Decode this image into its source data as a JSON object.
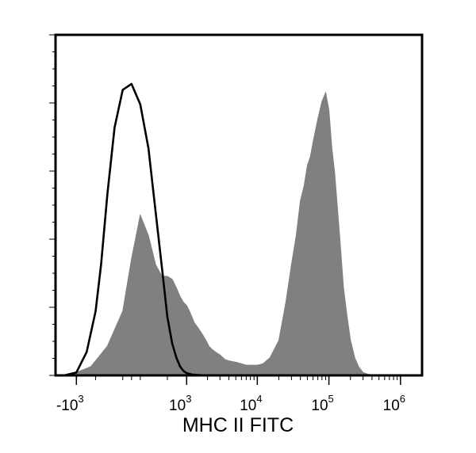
{
  "chart_data": {
    "type": "area",
    "title": "",
    "xlabel": "MHC II FITC",
    "ylabel": "",
    "x_scale": "biexponential",
    "x_ticks": [
      {
        "value": -1000,
        "base": "-10",
        "exp": "3"
      },
      {
        "value": 1000,
        "base": "10",
        "exp": "3"
      },
      {
        "value": 10000,
        "base": "10",
        "exp": "4"
      },
      {
        "value": 100000,
        "base": "10",
        "exp": "5"
      },
      {
        "value": 1000000,
        "base": "10",
        "exp": "6"
      }
    ],
    "y_ticks_labeled": false,
    "legend": "none",
    "grid": false,
    "series": [
      {
        "style": "filled",
        "color": "#808080",
        "x": [
          -1500,
          -1000,
          -600,
          -300,
          -100,
          0,
          100,
          200,
          300,
          400,
          500,
          600,
          700,
          800,
          900,
          1000,
          1100,
          1200,
          1300,
          1500,
          1700,
          1900,
          2100,
          2300,
          2600,
          3000,
          3500,
          4000,
          5000,
          6000,
          7000,
          8000,
          10000,
          12000,
          15000,
          20000,
          25000,
          30000,
          35000,
          40000,
          45000,
          50000,
          55000,
          60000,
          70000,
          80000,
          90000,
          100000,
          110000,
          120000,
          140000,
          160000,
          180000,
          200000,
          230000,
          260000,
          300000,
          350000,
          400000,
          500000,
          600000
        ],
        "y": [
          0,
          0.01,
          0.03,
          0.1,
          0.22,
          0.4,
          0.55,
          0.48,
          0.38,
          0.34,
          0.34,
          0.33,
          0.3,
          0.27,
          0.25,
          0.24,
          0.22,
          0.2,
          0.18,
          0.16,
          0.14,
          0.12,
          0.1,
          0.09,
          0.08,
          0.07,
          0.055,
          0.05,
          0.045,
          0.04,
          0.035,
          0.035,
          0.035,
          0.04,
          0.06,
          0.12,
          0.25,
          0.38,
          0.48,
          0.6,
          0.65,
          0.72,
          0.75,
          0.8,
          0.88,
          0.94,
          0.97,
          0.91,
          0.78,
          0.7,
          0.49,
          0.3,
          0.2,
          0.12,
          0.06,
          0.03,
          0.01,
          0.004,
          0.002,
          0.001,
          0
        ]
      },
      {
        "style": "line",
        "color": "#000000",
        "x": [
          -1500,
          -1000,
          -700,
          -500,
          -400,
          -300,
          -200,
          -100,
          0,
          100,
          200,
          300,
          400,
          500,
          600,
          700,
          800,
          900,
          1000,
          1200,
          1500,
          2000,
          5000,
          100000,
          1000000
        ],
        "y": [
          0,
          0.01,
          0.08,
          0.22,
          0.38,
          0.62,
          0.85,
          0.98,
          1.0,
          0.93,
          0.78,
          0.56,
          0.37,
          0.2,
          0.11,
          0.06,
          0.03,
          0.015,
          0.008,
          0.003,
          0.001,
          0,
          0,
          0,
          0
        ]
      }
    ]
  }
}
